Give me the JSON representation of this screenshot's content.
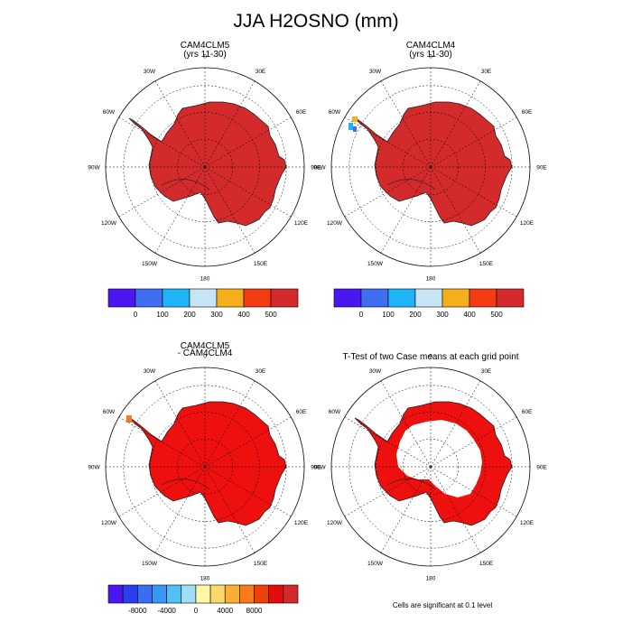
{
  "figure": {
    "title": "JJA H2OSNO (mm)",
    "footnote": "Cells are significant at 0.1 level"
  },
  "longitude_labels": [
    "0",
    "30E",
    "60E",
    "90E",
    "120E",
    "150E",
    "180",
    "150W",
    "120W",
    "90W",
    "60W",
    "30W"
  ],
  "panels": [
    {
      "title_line1": "CAM4CLM5",
      "title_line2": "(yrs 11-30)",
      "fill_color": "#d32a2c",
      "variant": "base"
    },
    {
      "title_line1": "CAM4CLM4",
      "title_line2": "(yrs 11-30)",
      "fill_color": "#d32a2c",
      "variant": "peninsula-blue"
    },
    {
      "title_line1": "CAM4CLM5",
      "title_line2": "- CAM4CLM4",
      "fill_color": "#ee0f0f",
      "variant": "peninsula-orange"
    },
    {
      "title_line1": "T-Test of two Case means at each grid point",
      "title_line2": "",
      "fill_color": "#ee0f0f",
      "variant": "ring"
    }
  ],
  "colorbars": [
    {
      "colors": [
        "#4a17f0",
        "#3f6ef0",
        "#1eb4f5",
        "#c5e5f5",
        "#f5ae1c",
        "#f43c12",
        "#d32a2c"
      ],
      "labels": [
        "0",
        "100",
        "200",
        "300",
        "400",
        "500"
      ]
    },
    {
      "colors": [
        "#4a17f0",
        "#3f6ef0",
        "#1eb4f5",
        "#c5e5f5",
        "#f5ae1c",
        "#f43c12",
        "#d32a2c"
      ],
      "labels": [
        "0",
        "100",
        "200",
        "300",
        "400",
        "500"
      ]
    },
    {
      "colors": [
        "#4a17f0",
        "#2a3ef0",
        "#3a6cf5",
        "#3898f5",
        "#50c0f5",
        "#9fdff5",
        "#fdf7a6",
        "#fcd86a",
        "#fbae35",
        "#f77a1c",
        "#f0400e",
        "#e10c0c",
        "#d22a2c"
      ],
      "labels": [
        "-8000",
        "-4000",
        "0",
        "4000",
        "8000"
      ]
    }
  ]
}
